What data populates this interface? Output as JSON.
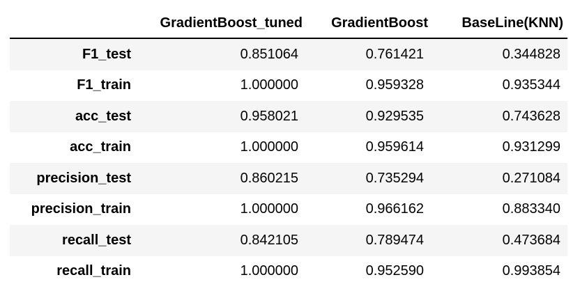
{
  "table": {
    "columns": [
      "",
      "GradientBoost_tuned",
      "GradientBoost",
      "BaseLine(KNN)"
    ],
    "rows": [
      {
        "label": "F1_test",
        "values": [
          "0.851064",
          "0.761421",
          "0.344828"
        ]
      },
      {
        "label": "F1_train",
        "values": [
          "1.000000",
          "0.959328",
          "0.935344"
        ]
      },
      {
        "label": "acc_test",
        "values": [
          "0.958021",
          "0.929535",
          "0.743628"
        ]
      },
      {
        "label": "acc_train",
        "values": [
          "1.000000",
          "0.959614",
          "0.931299"
        ]
      },
      {
        "label": "precision_test",
        "values": [
          "0.860215",
          "0.735294",
          "0.271084"
        ]
      },
      {
        "label": "precision_train",
        "values": [
          "1.000000",
          "0.966162",
          "0.883340"
        ]
      },
      {
        "label": "recall_test",
        "values": [
          "0.842105",
          "0.789474",
          "0.473684"
        ]
      },
      {
        "label": "recall_train",
        "values": [
          "1.000000",
          "0.952590",
          "0.993854"
        ]
      }
    ]
  }
}
